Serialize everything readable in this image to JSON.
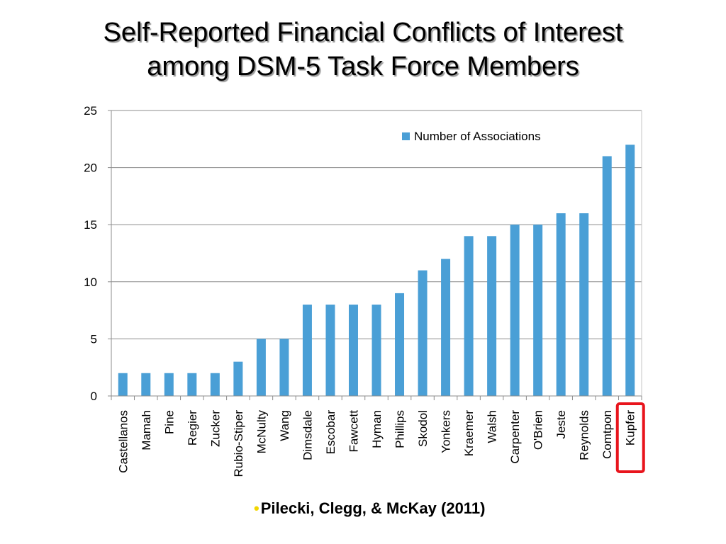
{
  "slide": {
    "title_line1": "Self-Reported Financial Conflicts of Interest",
    "title_line2": "among DSM-5 Task Force Members",
    "citation": "Pilecki, Clegg, & McKay (2011)",
    "bullet_char": "•",
    "bullet_color": "#f2d600"
  },
  "chart_data": {
    "type": "bar",
    "title": "",
    "xlabel": "",
    "ylabel": "",
    "ylim": [
      0,
      25
    ],
    "yticks": [
      0,
      5,
      10,
      15,
      20,
      25
    ],
    "grid": true,
    "legend_position": "top-right",
    "categories": [
      "Castellanos",
      "Mamah",
      "Pine",
      "Regier",
      "Zucker",
      "Rubio-Stiper",
      "McNulty",
      "Wang",
      "Dimsdale",
      "Escobar",
      "Fawcett",
      "Hyman",
      "Phillips",
      "Skodol",
      "Yonkers",
      "Kraemer",
      "Walsh",
      "Carpenter",
      "O'Brien",
      "Jeste",
      "Reynolds",
      "Comtpon",
      "Kupfer"
    ],
    "series": [
      {
        "name": "Number of Associations",
        "color": "#4a9fd6",
        "values": [
          2,
          2,
          2,
          2,
          2,
          3,
          5,
          5,
          8,
          8,
          8,
          8,
          9,
          11,
          12,
          14,
          14,
          15,
          15,
          16,
          16,
          21,
          22
        ]
      }
    ],
    "highlight": {
      "category": "Kupfer",
      "color": "#e8141c"
    }
  }
}
